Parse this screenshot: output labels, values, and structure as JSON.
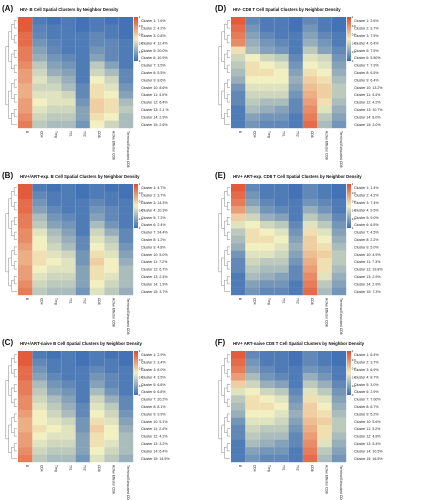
{
  "figure": {
    "colors": {
      "low": "#3D6EB5",
      "mid": "#F2F0C0",
      "high": "#E24A2C"
    }
  },
  "chart_data": [
    {
      "type": "heatmap",
      "label": "(A)",
      "title": "HIV- B Cell Spatial Clusters by Neighbor Density",
      "columns": [
        "B",
        "CD4",
        "Treg",
        "Th1",
        "Th2",
        "CD8",
        "Active Effector CD8",
        "Terminal Exhausted CD8"
      ],
      "rows": [
        "Cluster 1: 7.6%",
        "Cluster 2: 4.2%",
        "Cluster 3: 0.8%",
        "Cluster 4: 12.4%",
        "Cluster 5: 20.0%",
        "Cluster 6: 10.9%",
        "Cluster 7: 3.5%",
        "Cluster 8: 5.5%",
        "Cluster 9: 8.6%",
        "Cluster 10: 8.6%",
        "Cluster 11: 4.0%",
        "Cluster 12: 6.4%",
        "Cluster 13: 2.1 %",
        "Cluster 14: 2.9%",
        "Cluster 15: 2.6%"
      ],
      "values": [
        [
          0.95,
          0.05,
          0.02,
          0.05,
          0.02,
          0.05,
          0.02,
          0.02
        ],
        [
          0.95,
          0.08,
          0.05,
          0.05,
          0.02,
          0.05,
          0.05,
          0.02
        ],
        [
          0.9,
          0.1,
          0.05,
          0.05,
          0.05,
          0.1,
          0.05,
          0.02
        ],
        [
          0.9,
          0.15,
          0.08,
          0.05,
          0.05,
          0.1,
          0.1,
          0.05
        ],
        [
          0.85,
          0.2,
          0.1,
          0.05,
          0.05,
          0.15,
          0.1,
          0.05
        ],
        [
          0.85,
          0.25,
          0.15,
          0.1,
          0.05,
          0.2,
          0.1,
          0.05
        ],
        [
          0.8,
          0.35,
          0.2,
          0.15,
          0.05,
          0.35,
          0.2,
          0.05
        ],
        [
          0.75,
          0.4,
          0.25,
          0.2,
          0.05,
          0.4,
          0.3,
          0.1
        ],
        [
          0.75,
          0.45,
          0.35,
          0.25,
          0.05,
          0.5,
          0.4,
          0.1
        ],
        [
          0.7,
          0.4,
          0.4,
          0.3,
          0.1,
          0.55,
          0.45,
          0.15
        ],
        [
          0.7,
          0.45,
          0.45,
          0.4,
          0.1,
          0.55,
          0.5,
          0.2
        ],
        [
          0.75,
          0.5,
          0.45,
          0.45,
          0.15,
          0.6,
          0.55,
          0.3
        ],
        [
          0.75,
          0.45,
          0.4,
          0.4,
          0.2,
          0.6,
          0.55,
          0.35
        ],
        [
          0.8,
          0.4,
          0.35,
          0.35,
          0.2,
          0.55,
          0.5,
          0.3
        ],
        [
          0.85,
          0.35,
          0.3,
          0.3,
          0.15,
          0.5,
          0.4,
          0.3
        ]
      ],
      "colorbar_ticks": [
        "1",
        "0.8",
        "0.6",
        "0.4",
        "0.2",
        "0"
      ]
    },
    {
      "type": "heatmap",
      "label": "(D)",
      "title": "HIV- CD8 T Cell Spatial Clusters by Neighbor Density",
      "columns": [
        "B",
        "CD4",
        "Treg",
        "Th1",
        "Th2",
        "CD8",
        "Active Effector CD8",
        "Terminal Exhausted CD8"
      ],
      "rows": [
        "Cluster 1: 2.6%",
        "Cluster 2: 3.7%",
        "Cluster 3: 7.5%",
        "Cluster 4: 6.4%",
        "Cluster 5: 7.5%",
        "Cluster 6: 5.50%",
        "Cluster 7: 7.9%",
        "Cluster 8: 6.5%",
        "Cluster 9: 6.4%",
        "Cluster 10: 13.2%",
        "Cluster 11: 4.4%",
        "Cluster 12: 4.2%",
        "Cluster 13: 10.7%",
        "Cluster 14: 8.0%",
        "Cluster 15: 3.0%"
      ],
      "values": [
        [
          0.95,
          0.1,
          0.05,
          0.05,
          0.02,
          0.1,
          0.05,
          0.02
        ],
        [
          0.9,
          0.15,
          0.05,
          0.05,
          0.02,
          0.15,
          0.05,
          0.02
        ],
        [
          0.85,
          0.2,
          0.1,
          0.05,
          0.05,
          0.2,
          0.1,
          0.05
        ],
        [
          0.8,
          0.25,
          0.15,
          0.1,
          0.05,
          0.25,
          0.15,
          0.05
        ],
        [
          0.55,
          0.3,
          0.2,
          0.15,
          0.05,
          0.35,
          0.2,
          0.1
        ],
        [
          0.4,
          0.5,
          0.4,
          0.35,
          0.1,
          0.45,
          0.4,
          0.15
        ],
        [
          0.35,
          0.55,
          0.5,
          0.45,
          0.15,
          0.5,
          0.45,
          0.2
        ],
        [
          0.3,
          0.55,
          0.55,
          0.5,
          0.2,
          0.55,
          0.5,
          0.25
        ],
        [
          0.25,
          0.5,
          0.5,
          0.5,
          0.25,
          0.6,
          0.55,
          0.3
        ],
        [
          0.15,
          0.45,
          0.45,
          0.45,
          0.2,
          0.65,
          0.6,
          0.35
        ],
        [
          0.1,
          0.4,
          0.4,
          0.4,
          0.15,
          0.7,
          0.6,
          0.35
        ],
        [
          0.1,
          0.35,
          0.3,
          0.3,
          0.1,
          0.75,
          0.55,
          0.3
        ],
        [
          0.05,
          0.3,
          0.25,
          0.2,
          0.1,
          0.8,
          0.45,
          0.25
        ],
        [
          0.05,
          0.2,
          0.15,
          0.15,
          0.05,
          0.85,
          0.35,
          0.2
        ],
        [
          0.05,
          0.15,
          0.1,
          0.1,
          0.05,
          0.9,
          0.3,
          0.15
        ]
      ],
      "colorbar_ticks": [
        "1",
        "0.8",
        "0.6",
        "0.4",
        "0.2",
        "0"
      ]
    },
    {
      "type": "heatmap",
      "label": "(B)",
      "title": "HIV+/ART-exp. B Cell Spatial Clusters by Neighbor Density",
      "columns": [
        "B",
        "CD4",
        "Treg",
        "Th1",
        "Th2",
        "CD8",
        "Active Effector CD8",
        "Terminal Exhausted CD8"
      ],
      "rows": [
        "Cluster 1: 4.7%",
        "Cluster 2: 3.7%",
        "Cluster 3: 14.3%",
        "Cluster 4: 10.3%",
        "Cluster 5: 7.2%",
        "Cluster 6: 2.4%",
        "Cluster 7: 24.4%",
        "Cluster 8: 1.2%",
        "Cluster 9: 4.8%",
        "Cluster 10: 5.0%",
        "Cluster 11: 7.2%",
        "Cluster 12: 6.7%",
        "Cluster 13: 2.4%",
        "Cluster 14: 1.9%",
        "Cluster 15: 3.7%"
      ],
      "values": [
        [
          0.95,
          0.05,
          0.02,
          0.05,
          0.02,
          0.05,
          0.02,
          0.02
        ],
        [
          0.95,
          0.1,
          0.05,
          0.05,
          0.02,
          0.05,
          0.05,
          0.02
        ],
        [
          0.9,
          0.15,
          0.05,
          0.05,
          0.05,
          0.1,
          0.05,
          0.05
        ],
        [
          0.9,
          0.2,
          0.1,
          0.05,
          0.05,
          0.15,
          0.1,
          0.05
        ],
        [
          0.85,
          0.3,
          0.15,
          0.1,
          0.05,
          0.2,
          0.1,
          0.05
        ],
        [
          0.85,
          0.35,
          0.2,
          0.15,
          0.05,
          0.3,
          0.15,
          0.05
        ],
        [
          0.8,
          0.45,
          0.3,
          0.2,
          0.05,
          0.4,
          0.25,
          0.1
        ],
        [
          0.8,
          0.5,
          0.35,
          0.25,
          0.1,
          0.45,
          0.35,
          0.1
        ],
        [
          0.75,
          0.5,
          0.4,
          0.3,
          0.1,
          0.5,
          0.4,
          0.15
        ],
        [
          0.7,
          0.55,
          0.45,
          0.4,
          0.15,
          0.55,
          0.45,
          0.2
        ],
        [
          0.7,
          0.55,
          0.5,
          0.45,
          0.15,
          0.6,
          0.5,
          0.25
        ],
        [
          0.75,
          0.5,
          0.45,
          0.45,
          0.2,
          0.55,
          0.5,
          0.3
        ],
        [
          0.75,
          0.45,
          0.4,
          0.4,
          0.2,
          0.55,
          0.45,
          0.3
        ],
        [
          0.8,
          0.4,
          0.35,
          0.35,
          0.2,
          0.5,
          0.4,
          0.3
        ],
        [
          0.85,
          0.35,
          0.3,
          0.3,
          0.15,
          0.45,
          0.35,
          0.25
        ]
      ],
      "colorbar_ticks": [
        "1",
        "0.8",
        "0.6",
        "0.4",
        "0.2",
        "0"
      ]
    },
    {
      "type": "heatmap",
      "label": "(E)",
      "title": "HIV+ ART-exp. CD8 T Cell Spatial Clusters by Neighbor Density",
      "columns": [
        "B",
        "CD4",
        "Treg",
        "Th1",
        "Th2",
        "CD8",
        "Active Effector CD8",
        "Terminal Exhausted CD8"
      ],
      "rows": [
        "Cluster 1: 1.4%",
        "Cluster 2: 4.2%",
        "Cluster 3: 7.4%",
        "Cluster 4: 9.5%",
        "Cluster 5: 9.0%",
        "Cluster 6: 6.5%",
        "Cluster 7: 4.5%",
        "Cluster 8: 2.2%",
        "Cluster 9: 5.0%",
        "Cluster 10: 4.9%",
        "Cluster 11: 7.3%",
        "Cluster 12: 19.8%",
        "Cluster 13: 2.9%",
        "Cluster 14: 2.9%",
        "Cluster 15: 7.3%"
      ],
      "values": [
        [
          0.95,
          0.1,
          0.05,
          0.05,
          0.02,
          0.1,
          0.05,
          0.02
        ],
        [
          0.9,
          0.15,
          0.05,
          0.05,
          0.02,
          0.1,
          0.05,
          0.02
        ],
        [
          0.85,
          0.2,
          0.1,
          0.05,
          0.05,
          0.15,
          0.1,
          0.05
        ],
        [
          0.75,
          0.3,
          0.15,
          0.1,
          0.05,
          0.25,
          0.15,
          0.05
        ],
        [
          0.6,
          0.4,
          0.25,
          0.2,
          0.05,
          0.35,
          0.25,
          0.1
        ],
        [
          0.45,
          0.5,
          0.4,
          0.35,
          0.1,
          0.45,
          0.35,
          0.15
        ],
        [
          0.35,
          0.55,
          0.5,
          0.45,
          0.15,
          0.55,
          0.45,
          0.2
        ],
        [
          0.3,
          0.55,
          0.55,
          0.5,
          0.2,
          0.6,
          0.5,
          0.25
        ],
        [
          0.25,
          0.5,
          0.5,
          0.45,
          0.25,
          0.6,
          0.55,
          0.3
        ],
        [
          0.15,
          0.45,
          0.45,
          0.4,
          0.2,
          0.65,
          0.6,
          0.35
        ],
        [
          0.1,
          0.4,
          0.35,
          0.35,
          0.15,
          0.7,
          0.55,
          0.35
        ],
        [
          0.1,
          0.35,
          0.3,
          0.3,
          0.1,
          0.75,
          0.55,
          0.3
        ],
        [
          0.05,
          0.3,
          0.25,
          0.2,
          0.1,
          0.8,
          0.45,
          0.25
        ],
        [
          0.05,
          0.2,
          0.15,
          0.15,
          0.05,
          0.85,
          0.35,
          0.2
        ],
        [
          0.05,
          0.15,
          0.1,
          0.1,
          0.05,
          0.9,
          0.3,
          0.15
        ]
      ],
      "colorbar_ticks": [
        "1",
        "0.8",
        "0.6",
        "0.4",
        "0.2",
        "0"
      ]
    },
    {
      "type": "heatmap",
      "label": "(C)",
      "title": "HIV+/ART-naive B Cell Spatial Clusters by Neighbor Density",
      "columns": [
        "B",
        "CD4",
        "Treg",
        "Th1",
        "Th2",
        "CD8",
        "Active Effector CD8",
        "Terminal Exhausted CD8"
      ],
      "rows": [
        "Cluster 1: 2.9%",
        "Cluster 2: 3.4%",
        "Cluster 3: 6.0%",
        "Cluster 4: 3.5%",
        "Cluster 5: 6.6%",
        "Cluster 6: 6.8%",
        "Cluster 7: 20.2%",
        "Cluster 8: 8.1%",
        "Cluster 9: 9.9%",
        "Cluster 10: 5.1%",
        "Cluster 11: 2.4%",
        "Cluster 12: 4.2%",
        "Cluster 13: 3.2%",
        "Cluster 14: 6.4%",
        "Cluster 15: 14.5%"
      ],
      "values": [
        [
          0.95,
          0.05,
          0.02,
          0.05,
          0.02,
          0.05,
          0.02,
          0.02
        ],
        [
          0.95,
          0.1,
          0.05,
          0.05,
          0.02,
          0.05,
          0.05,
          0.02
        ],
        [
          0.9,
          0.15,
          0.05,
          0.05,
          0.05,
          0.1,
          0.05,
          0.05
        ],
        [
          0.9,
          0.2,
          0.1,
          0.05,
          0.05,
          0.15,
          0.1,
          0.05
        ],
        [
          0.85,
          0.3,
          0.15,
          0.1,
          0.05,
          0.2,
          0.1,
          0.05
        ],
        [
          0.85,
          0.35,
          0.2,
          0.15,
          0.05,
          0.3,
          0.15,
          0.05
        ],
        [
          0.8,
          0.4,
          0.3,
          0.2,
          0.05,
          0.4,
          0.25,
          0.1
        ],
        [
          0.8,
          0.45,
          0.35,
          0.25,
          0.1,
          0.45,
          0.35,
          0.1
        ],
        [
          0.75,
          0.5,
          0.4,
          0.3,
          0.1,
          0.5,
          0.4,
          0.15
        ],
        [
          0.7,
          0.5,
          0.45,
          0.4,
          0.15,
          0.55,
          0.45,
          0.2
        ],
        [
          0.7,
          0.55,
          0.5,
          0.45,
          0.15,
          0.6,
          0.5,
          0.25
        ],
        [
          0.75,
          0.5,
          0.45,
          0.45,
          0.2,
          0.55,
          0.5,
          0.3
        ],
        [
          0.75,
          0.45,
          0.4,
          0.4,
          0.2,
          0.55,
          0.45,
          0.3
        ],
        [
          0.8,
          0.4,
          0.35,
          0.35,
          0.2,
          0.5,
          0.4,
          0.3
        ],
        [
          0.85,
          0.35,
          0.3,
          0.3,
          0.15,
          0.45,
          0.35,
          0.25
        ]
      ],
      "colorbar_ticks": [
        "1",
        "0.8",
        "0.6",
        "0.4",
        "0.2",
        "0"
      ]
    },
    {
      "type": "heatmap",
      "label": "(F)",
      "title": "HIV+ ART-naive CD8 T Cell Spatial Clusters by Neighbor Density",
      "columns": [
        "B",
        "CD4",
        "Treg",
        "Th1",
        "Th2",
        "CD8",
        "Active Effector CD8",
        "Terminal Exhausted CD8"
      ],
      "rows": [
        "Cluster 1: 6.4%",
        "Cluster 2: 3.7%",
        "Cluster 3: 6.9%",
        "Cluster 4: 8.7%",
        "Cluster 5: 3.0%",
        "Cluster 6: 2.9%",
        "Cluster 7: 7.00%",
        "Cluster 8: 6.7%",
        "Cluster 9: 5.2%",
        "Cluster 10: 5.6%",
        "Cluster 11: 3.2%",
        "Cluster 12: 4.8%",
        "Cluster 13: 5.4%",
        "Cluster 14: 10.5%",
        "Cluster 15: 16.5%"
      ],
      "values": [
        [
          0.95,
          0.1,
          0.05,
          0.05,
          0.02,
          0.1,
          0.05,
          0.02
        ],
        [
          0.9,
          0.15,
          0.05,
          0.05,
          0.02,
          0.1,
          0.05,
          0.02
        ],
        [
          0.85,
          0.2,
          0.1,
          0.05,
          0.05,
          0.15,
          0.1,
          0.05
        ],
        [
          0.75,
          0.3,
          0.15,
          0.1,
          0.05,
          0.25,
          0.15,
          0.05
        ],
        [
          0.6,
          0.4,
          0.25,
          0.2,
          0.05,
          0.35,
          0.25,
          0.1
        ],
        [
          0.45,
          0.5,
          0.4,
          0.35,
          0.1,
          0.45,
          0.35,
          0.15
        ],
        [
          0.35,
          0.55,
          0.5,
          0.45,
          0.15,
          0.55,
          0.45,
          0.2
        ],
        [
          0.3,
          0.55,
          0.55,
          0.5,
          0.2,
          0.6,
          0.5,
          0.25
        ],
        [
          0.25,
          0.5,
          0.5,
          0.45,
          0.25,
          0.6,
          0.55,
          0.3
        ],
        [
          0.15,
          0.45,
          0.45,
          0.4,
          0.2,
          0.65,
          0.6,
          0.35
        ],
        [
          0.1,
          0.4,
          0.35,
          0.35,
          0.15,
          0.7,
          0.55,
          0.35
        ],
        [
          0.1,
          0.35,
          0.3,
          0.3,
          0.1,
          0.75,
          0.55,
          0.3
        ],
        [
          0.05,
          0.3,
          0.25,
          0.2,
          0.1,
          0.8,
          0.45,
          0.25
        ],
        [
          0.05,
          0.2,
          0.15,
          0.15,
          0.05,
          0.85,
          0.35,
          0.2
        ],
        [
          0.05,
          0.15,
          0.1,
          0.1,
          0.05,
          0.9,
          0.3,
          0.15
        ]
      ],
      "colorbar_ticks": [
        "1",
        "0.8",
        "0.6",
        "0.4",
        "0.2",
        "0"
      ]
    }
  ]
}
